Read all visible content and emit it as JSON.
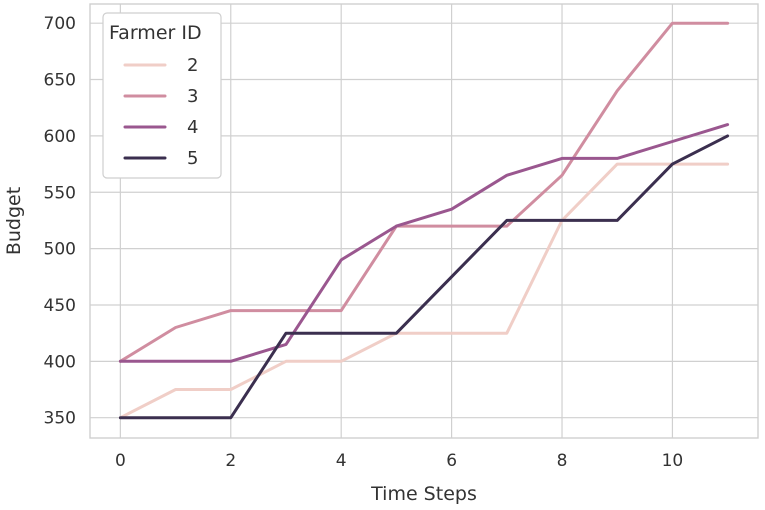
{
  "chart_data": {
    "type": "line",
    "xlabel": "Time Steps",
    "ylabel": "Budget",
    "xlim": [
      -0.55,
      11.55
    ],
    "ylim": [
      332,
      717
    ],
    "xticks": [
      0,
      2,
      4,
      6,
      8,
      10
    ],
    "yticks": [
      350,
      400,
      450,
      500,
      550,
      600,
      650,
      700
    ],
    "grid": true,
    "legend": {
      "title": "Farmer ID",
      "placement": "top-left"
    },
    "x": [
      0,
      1,
      2,
      3,
      4,
      5,
      6,
      7,
      8,
      9,
      10,
      11
    ],
    "series": [
      {
        "name": "2",
        "color": "#f0cec7",
        "values": [
          350,
          375,
          375,
          400,
          400,
          425,
          425,
          425,
          525,
          575,
          575,
          575
        ]
      },
      {
        "name": "3",
        "color": "#d08da0",
        "values": [
          400,
          430,
          445,
          445,
          445,
          520,
          520,
          520,
          565,
          640,
          700,
          700
        ]
      },
      {
        "name": "4",
        "color": "#9a578f",
        "values": [
          400,
          400,
          400,
          415,
          490,
          520,
          535,
          565,
          580,
          580,
          595,
          610
        ]
      },
      {
        "name": "5",
        "color": "#3b2f4f",
        "values": [
          350,
          350,
          350,
          425,
          425,
          425,
          475,
          525,
          525,
          525,
          575,
          600
        ]
      }
    ]
  }
}
